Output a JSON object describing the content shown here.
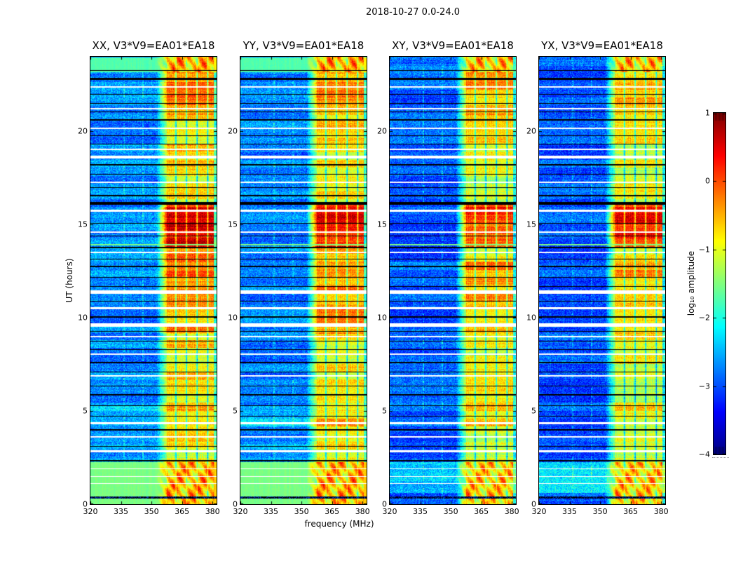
{
  "figure": {
    "suptitle": "2018-10-27 0.0-24.0"
  },
  "chart_data": {
    "type": "heatmap",
    "panels": [
      {
        "title": "XX, V3*V9=EA01*EA18",
        "pol": "XX",
        "seed": 11,
        "cross": false
      },
      {
        "title": "YY, V3*V9=EA01*EA18",
        "pol": "YY",
        "seed": 23,
        "cross": false
      },
      {
        "title": "XY, V3*V9=EA01*EA18",
        "pol": "XY",
        "seed": 37,
        "cross": true
      },
      {
        "title": "YX, V3*V9=EA01*EA18",
        "pol": "YX",
        "seed": 51,
        "cross": true
      }
    ],
    "xaxis": {
      "label": "frequency (MHz)",
      "min": 320,
      "max": 382,
      "ticks": [
        320,
        335,
        350,
        365,
        380
      ]
    },
    "yaxis": {
      "label": "UT (hours)",
      "min": 0,
      "max": 24,
      "ticks": [
        0,
        5,
        10,
        15,
        20
      ]
    },
    "colorbar": {
      "label": "log₁₀ amplitude",
      "min": -4,
      "max": 1,
      "ticks": [
        1,
        0,
        -1,
        -2,
        -3,
        -4
      ],
      "colormap": "jet"
    },
    "render": {
      "band": {
        "start_mhz": 357.5,
        "end_mhz": 380.7,
        "transition_start_mhz": 352.5,
        "stripe_gaps_mhz": [
          362.0,
          367.2,
          372.4,
          377.6
        ]
      },
      "faint_lines_mhz": [
        336.4,
        345.9
      ],
      "band_profile": [
        [
          2.28,
          4.2,
          -0.78
        ],
        [
          4.2,
          5.3,
          -0.6
        ],
        [
          5.3,
          9.15,
          -0.78
        ],
        [
          9.15,
          10.3,
          -0.42
        ],
        [
          10.3,
          13.4,
          -0.33
        ],
        [
          13.4,
          13.8,
          -0.62
        ],
        [
          13.8,
          16.15,
          0.38
        ],
        [
          16.15,
          18.6,
          -0.88
        ],
        [
          18.6,
          20.9,
          -0.72
        ],
        [
          20.9,
          23.1,
          -0.34
        ],
        [
          23.1,
          24,
          -0.5
        ]
      ],
      "bg_profile_parallel": {
        "default": -2.72,
        "segments": [
          [
            0,
            2.28,
            -1.52
          ],
          [
            2.28,
            3.2,
            -2.5
          ],
          [
            4.2,
            5.3,
            -2.4
          ],
          [
            23.2,
            24,
            -1.72
          ]
        ]
      },
      "bg_profile_cross": {
        "default": -2.95,
        "segments": [
          [
            0.62,
            2.28,
            -2.32
          ],
          [
            23.2,
            24,
            -2.85
          ]
        ]
      },
      "calib_hours": {
        "bottom": [
          0,
          2.28
        ],
        "top": [
          23.2,
          24
        ]
      },
      "white_gaps": [
        {
          "h": 1.13,
          "px": 1
        },
        {
          "h": 1.5,
          "px": 1
        },
        {
          "h": 1.92,
          "px": 1
        },
        {
          "h": 2.86,
          "px": 3
        },
        {
          "h": 3.6,
          "px": 2
        },
        {
          "h": 4.35,
          "px": 3
        },
        {
          "h": 6.9,
          "px": 2
        },
        {
          "h": 8.05,
          "px": 2
        },
        {
          "h": 9.0,
          "px": 2
        },
        {
          "h": 9.62,
          "px": 5
        },
        {
          "h": 10.52,
          "px": 3
        },
        {
          "h": 11.38,
          "px": 5
        },
        {
          "h": 13.52,
          "px": 2
        },
        {
          "h": 14.6,
          "px": 2
        },
        {
          "h": 15.78,
          "px": 3
        },
        {
          "h": 17.25,
          "px": 2
        },
        {
          "h": 18.62,
          "px": 4
        },
        {
          "h": 19.02,
          "px": 2
        },
        {
          "h": 20.15,
          "px": 2
        },
        {
          "h": 21.2,
          "px": 2
        },
        {
          "h": 22.4,
          "px": 2
        }
      ],
      "black_lines": [
        {
          "h": 2.32,
          "px": 2
        },
        {
          "h": 3.12,
          "px": 1
        },
        {
          "h": 4.0,
          "px": 2
        },
        {
          "h": 4.75,
          "px": 1
        },
        {
          "h": 5.3,
          "px": 1
        },
        {
          "h": 5.85,
          "px": 2
        },
        {
          "h": 6.35,
          "px": 1
        },
        {
          "h": 7.1,
          "px": 1
        },
        {
          "h": 7.6,
          "px": 2
        },
        {
          "h": 8.3,
          "px": 1
        },
        {
          "h": 8.75,
          "px": 1
        },
        {
          "h": 9.3,
          "px": 1
        },
        {
          "h": 10.05,
          "px": 2
        },
        {
          "h": 10.9,
          "px": 1
        },
        {
          "h": 11.7,
          "px": 1
        },
        {
          "h": 12.2,
          "px": 1
        },
        {
          "h": 12.75,
          "px": 2
        },
        {
          "h": 13.15,
          "px": 1
        },
        {
          "h": 13.78,
          "px": 2
        },
        {
          "h": 14.4,
          "px": 1
        },
        {
          "h": 15.1,
          "px": 1
        },
        {
          "h": 16.15,
          "px": 4
        },
        {
          "h": 16.55,
          "px": 2
        },
        {
          "h": 17.0,
          "px": 1
        },
        {
          "h": 17.7,
          "px": 1
        },
        {
          "h": 18.2,
          "px": 2
        },
        {
          "h": 19.35,
          "px": 1
        },
        {
          "h": 19.8,
          "px": 1
        },
        {
          "h": 20.6,
          "px": 2
        },
        {
          "h": 21.05,
          "px": 1
        },
        {
          "h": 21.5,
          "px": 1
        },
        {
          "h": 22.0,
          "px": 1
        },
        {
          "h": 22.82,
          "px": 3
        },
        {
          "h": 23.3,
          "px": 1
        }
      ],
      "speckle_rows": [
        {
          "h": 0.36,
          "px": 3
        }
      ],
      "bright_rows": [
        {
          "h": 13.92,
          "px": 2,
          "level": -1.5
        }
      ]
    }
  }
}
